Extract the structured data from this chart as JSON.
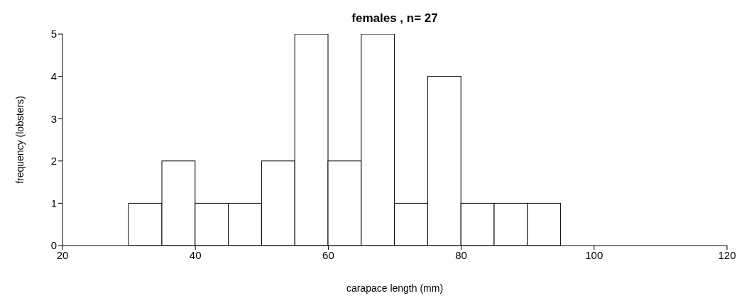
{
  "chart_data": {
    "type": "histogram",
    "title": "females , n= 27",
    "xlabel": "carapace length (mm)",
    "ylabel": "frequency (lobsters)",
    "bins": [
      30,
      35,
      40,
      45,
      50,
      55,
      60,
      65,
      70,
      75,
      80,
      85,
      90,
      95
    ],
    "values": [
      1,
      2,
      1,
      1,
      2,
      5,
      2,
      5,
      1,
      4,
      1,
      1,
      1
    ],
    "color": "#ffffff",
    "xlim": [
      20,
      120
    ],
    "xticks": [
      20,
      40,
      60,
      80,
      100,
      120
    ],
    "ylim": [
      0,
      5
    ],
    "yticks": [
      0,
      1,
      2,
      3,
      4,
      5
    ],
    "grid": false
  }
}
